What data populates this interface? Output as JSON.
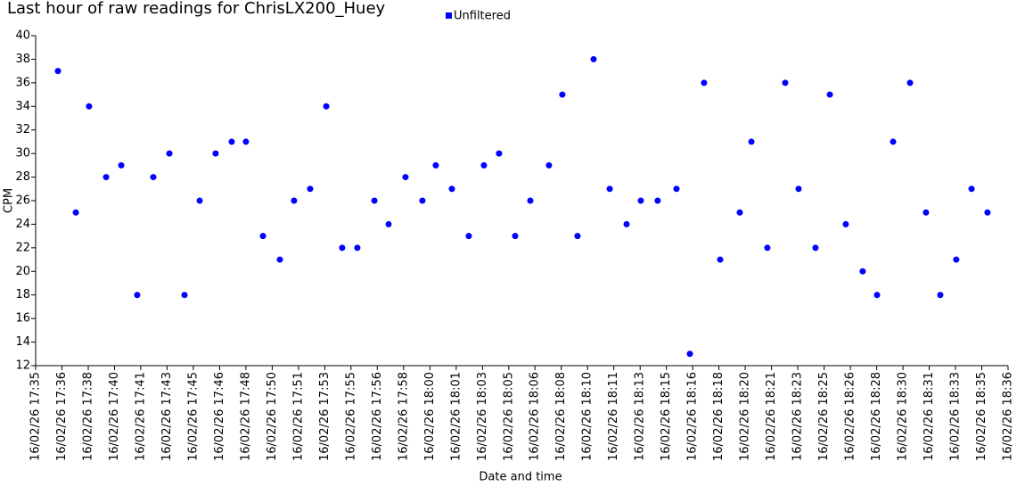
{
  "chart_data": {
    "type": "scatter",
    "title": "Last hour of raw readings for ChrisLX200_Huey",
    "x_label": "Date and time",
    "y_label": "CPM",
    "legend_position": "top",
    "grid": false,
    "xlim": [
      1055,
      1116
    ],
    "ylim": [
      12,
      40
    ],
    "yticks": [
      12,
      14,
      16,
      18,
      20,
      22,
      24,
      26,
      28,
      30,
      32,
      34,
      36,
      38,
      40
    ],
    "xticks": [
      {
        "value": 1055,
        "label": "16/02/26 17:35"
      },
      {
        "value": 1056.65,
        "label": "16/02/26 17:36"
      },
      {
        "value": 1058.3,
        "label": "16/02/26 17:38"
      },
      {
        "value": 1059.95,
        "label": "16/02/26 17:40"
      },
      {
        "value": 1061.59,
        "label": "16/02/26 17:41"
      },
      {
        "value": 1063.24,
        "label": "16/02/26 17:43"
      },
      {
        "value": 1064.89,
        "label": "16/02/26 17:45"
      },
      {
        "value": 1066.54,
        "label": "16/02/26 17:46"
      },
      {
        "value": 1068.19,
        "label": "16/02/26 17:48"
      },
      {
        "value": 1069.84,
        "label": "16/02/26 17:50"
      },
      {
        "value": 1071.49,
        "label": "16/02/26 17:51"
      },
      {
        "value": 1073.14,
        "label": "16/02/26 17:53"
      },
      {
        "value": 1074.78,
        "label": "16/02/26 17:55"
      },
      {
        "value": 1076.43,
        "label": "16/02/26 17:56"
      },
      {
        "value": 1078.08,
        "label": "16/02/26 17:58"
      },
      {
        "value": 1079.73,
        "label": "16/02/26 18:00"
      },
      {
        "value": 1081.38,
        "label": "16/02/26 18:01"
      },
      {
        "value": 1083.03,
        "label": "16/02/26 18:03"
      },
      {
        "value": 1084.68,
        "label": "16/02/26 18:05"
      },
      {
        "value": 1086.32,
        "label": "16/02/26 18:06"
      },
      {
        "value": 1087.97,
        "label": "16/02/26 18:08"
      },
      {
        "value": 1089.62,
        "label": "16/02/26 18:10"
      },
      {
        "value": 1091.27,
        "label": "16/02/26 18:11"
      },
      {
        "value": 1092.92,
        "label": "16/02/26 18:13"
      },
      {
        "value": 1094.57,
        "label": "16/02/26 18:15"
      },
      {
        "value": 1096.22,
        "label": "16/02/26 18:16"
      },
      {
        "value": 1097.86,
        "label": "16/02/26 18:18"
      },
      {
        "value": 1099.51,
        "label": "16/02/26 18:20"
      },
      {
        "value": 1101.16,
        "label": "16/02/26 18:21"
      },
      {
        "value": 1102.81,
        "label": "16/02/26 18:23"
      },
      {
        "value": 1104.46,
        "label": "16/02/26 18:25"
      },
      {
        "value": 1106.11,
        "label": "16/02/26 18:26"
      },
      {
        "value": 1107.76,
        "label": "16/02/26 18:28"
      },
      {
        "value": 1109.41,
        "label": "16/02/26 18:30"
      },
      {
        "value": 1111.05,
        "label": "16/02/26 18:31"
      },
      {
        "value": 1112.7,
        "label": "16/02/26 18:33"
      },
      {
        "value": 1114.35,
        "label": "16/02/26 18:35"
      },
      {
        "value": 1116,
        "label": "16/02/26 18:36"
      }
    ],
    "series": [
      {
        "name": "Unfiltered",
        "color": "#0000ff",
        "x": [
          1056.4,
          1057.52,
          1058.35,
          1059.42,
          1060.37,
          1061.37,
          1062.38,
          1063.39,
          1064.34,
          1065.29,
          1066.29,
          1067.3,
          1068.19,
          1069.26,
          1070.32,
          1071.21,
          1072.22,
          1073.23,
          1074.23,
          1075.18,
          1076.25,
          1077.14,
          1078.2,
          1079.26,
          1080.1,
          1081.11,
          1082.17,
          1083.12,
          1084.07,
          1085.08,
          1086.03,
          1087.2,
          1088.04,
          1088.99,
          1090.0,
          1091.01,
          1092.07,
          1092.96,
          1094.02,
          1095.2,
          1096.04,
          1096.93,
          1097.94,
          1099.17,
          1099.9,
          1100.9,
          1102.02,
          1102.86,
          1103.92,
          1104.82,
          1105.82,
          1106.88,
          1107.78,
          1108.79,
          1109.85,
          1110.85,
          1111.75,
          1112.75,
          1113.71,
          1114.71
        ],
        "values": [
          37,
          25,
          34,
          28,
          29,
          18,
          28,
          30,
          18,
          26,
          30,
          31,
          31,
          23,
          21,
          26,
          27,
          34,
          22,
          22,
          26,
          24,
          28,
          26,
          29,
          27,
          23,
          29,
          30,
          23,
          26,
          29,
          35,
          23,
          38,
          27,
          24,
          26,
          26,
          27,
          13,
          36,
          21,
          25,
          31,
          22,
          36,
          27,
          22,
          35,
          24,
          20,
          18,
          31,
          36,
          25,
          18,
          21,
          27,
          25
        ]
      }
    ]
  }
}
